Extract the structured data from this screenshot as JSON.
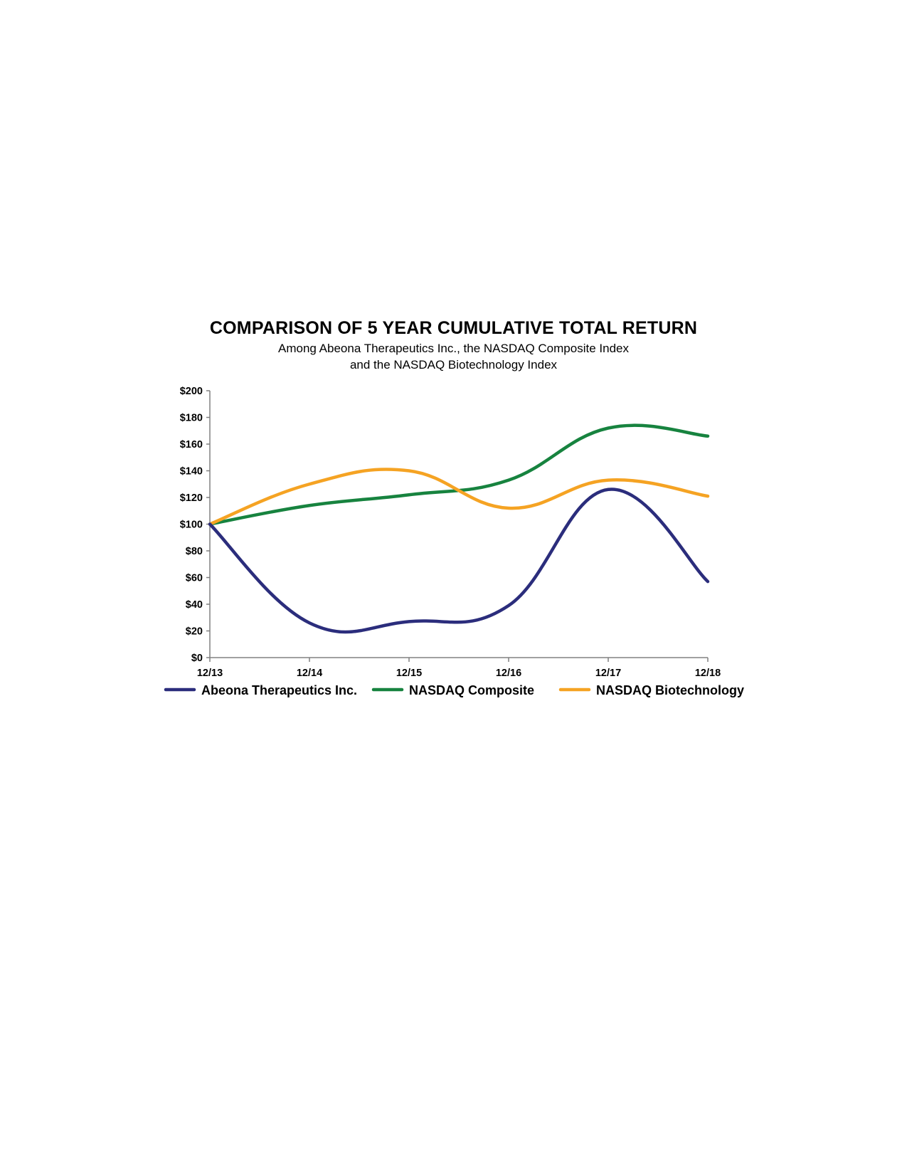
{
  "chart_data": {
    "type": "line",
    "title": "COMPARISON OF 5 YEAR CUMULATIVE TOTAL RETURN",
    "subtitle": [
      "Among Abeona Therapeutics Inc., the NASDAQ Composite Index",
      "and the NASDAQ Biotechnology Index"
    ],
    "categories": [
      "12/13",
      "12/14",
      "12/15",
      "12/16",
      "12/17",
      "12/18"
    ],
    "y_ticks": [
      "$0",
      "$20",
      "$40",
      "$60",
      "$80",
      "$100",
      "$120",
      "$140",
      "$160",
      "$180",
      "$200"
    ],
    "ylim": [
      0,
      200
    ],
    "grid": false,
    "legend_position": "bottom",
    "series": [
      {
        "name": "Abeona Therapeutics Inc.",
        "color": "#2b2d7c",
        "values": [
          100,
          26,
          27,
          39,
          126,
          57
        ]
      },
      {
        "name": "NASDAQ Composite",
        "color": "#17833f",
        "values": [
          100,
          114,
          122,
          133,
          172,
          166
        ]
      },
      {
        "name": "NASDAQ Biotechnology",
        "color": "#f5a323",
        "values": [
          100,
          130,
          140,
          112,
          133,
          121
        ]
      }
    ]
  }
}
